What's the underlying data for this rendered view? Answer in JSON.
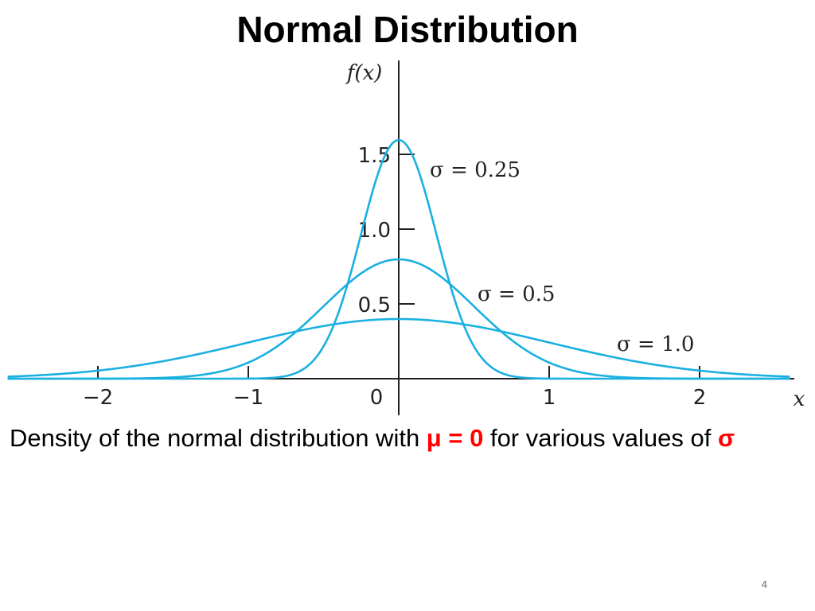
{
  "slide": {
    "title": "Normal Distribution",
    "caption": {
      "part1": "Density of the normal distribution with ",
      "mu_text": "μ = 0",
      "part2": " for various values of ",
      "sigma_text": "σ"
    },
    "page_number": "4",
    "highlight_color": "#ff0000"
  },
  "chart_data": {
    "type": "line",
    "title": "",
    "xlabel": "x",
    "ylabel": "f(x)",
    "xlim": [
      -2.6,
      2.6
    ],
    "ylim": [
      0,
      1.6
    ],
    "x_ticks": [
      -2,
      -1,
      0,
      1,
      2
    ],
    "x_tick_labels": [
      "−2",
      "−1",
      "0",
      "1",
      "2"
    ],
    "y_ticks": [
      0.5,
      1.0,
      1.5
    ],
    "y_tick_labels": [
      "0.5",
      "1.0",
      "1.5"
    ],
    "line_color": "#1ab0e0",
    "grid": false,
    "mu": 0,
    "series": [
      {
        "name": "σ = 0.25",
        "sigma": 0.25,
        "x": [
          -2.6,
          -1,
          -0.75,
          -0.5,
          -0.25,
          0,
          0.25,
          0.5,
          0.75,
          1,
          2.6
        ],
        "y": [
          0.0,
          0.0005,
          0.0177,
          0.216,
          0.9679,
          1.5958,
          0.9679,
          0.216,
          0.0177,
          0.0005,
          0.0
        ]
      },
      {
        "name": "σ = 0.5",
        "sigma": 0.5,
        "x": [
          -2.6,
          -2,
          -1.5,
          -1,
          -0.5,
          0,
          0.5,
          1,
          1.5,
          2,
          2.6
        ],
        "y": [
          0.0,
          0.0003,
          0.0089,
          0.108,
          0.4839,
          0.7979,
          0.4839,
          0.108,
          0.0089,
          0.0003,
          0.0
        ]
      },
      {
        "name": "σ = 1.0",
        "sigma": 1.0,
        "x": [
          -2.6,
          -2,
          -1,
          0,
          1,
          2,
          2.6
        ],
        "y": [
          0.0136,
          0.054,
          0.242,
          0.3989,
          0.242,
          0.054,
          0.0136
        ]
      }
    ]
  }
}
